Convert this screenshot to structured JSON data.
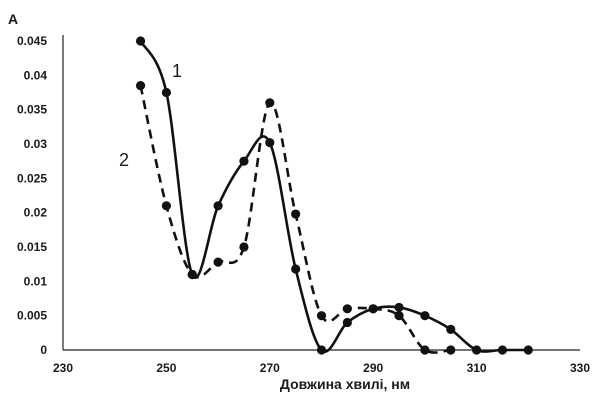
{
  "chart_data": {
    "type": "line",
    "ylabel": "A",
    "xlabel": "Довжина хвилі, нм",
    "xlim": [
      230,
      330
    ],
    "ylim": [
      0,
      0.045
    ],
    "x_ticks": [
      "230",
      "250",
      "270",
      "290",
      "310",
      "330"
    ],
    "y_ticks": [
      "0",
      "0.005",
      "0.01",
      "0.015",
      "0.02",
      "0.025",
      "0.03",
      "0.035",
      "0.04",
      "0.045"
    ],
    "grid": false,
    "series": [
      {
        "name": "1",
        "line_style": "solid",
        "color": "#111111",
        "points": [
          {
            "x": 245,
            "y": 0.045
          },
          {
            "x": 250,
            "y": 0.0375
          },
          {
            "x": 255,
            "y": 0.011
          },
          {
            "x": 260,
            "y": 0.021
          },
          {
            "x": 265,
            "y": 0.0275
          },
          {
            "x": 270,
            "y": 0.0302
          },
          {
            "x": 275,
            "y": 0.0118
          },
          {
            "x": 280,
            "y": 0.0
          },
          {
            "x": 285,
            "y": 0.004
          },
          {
            "x": 290,
            "y": 0.006
          },
          {
            "x": 295,
            "y": 0.0062
          },
          {
            "x": 300,
            "y": 0.005
          },
          {
            "x": 305,
            "y": 0.003
          },
          {
            "x": 310,
            "y": 0.0
          },
          {
            "x": 315,
            "y": 0.0
          },
          {
            "x": 320,
            "y": 0.0
          }
        ]
      },
      {
        "name": "2",
        "line_style": "dashed",
        "color": "#111111",
        "points": [
          {
            "x": 245,
            "y": 0.0385
          },
          {
            "x": 250,
            "y": 0.021
          },
          {
            "x": 255,
            "y": 0.011
          },
          {
            "x": 260,
            "y": 0.0128
          },
          {
            "x": 265,
            "y": 0.015
          },
          {
            "x": 270,
            "y": 0.036
          },
          {
            "x": 275,
            "y": 0.0198
          },
          {
            "x": 280,
            "y": 0.005
          },
          {
            "x": 285,
            "y": 0.006
          },
          {
            "x": 290,
            "y": 0.006
          },
          {
            "x": 295,
            "y": 0.005
          },
          {
            "x": 300,
            "y": 0.0
          },
          {
            "x": 305,
            "y": 0.0
          }
        ]
      }
    ]
  }
}
